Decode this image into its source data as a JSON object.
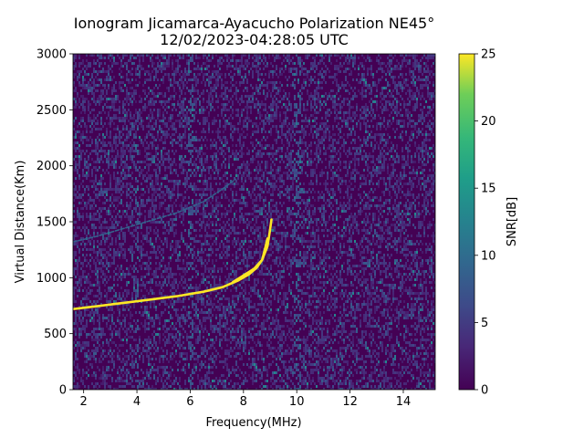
{
  "chart_data": {
    "type": "heatmap",
    "title": "Ionogram Jicamarca-Ayacucho Polarization NE45°",
    "subtitle": "12/02/2023-04:28:05 UTC",
    "xlabel": "Frequency(MHz)",
    "ylabel": "Virtual Distance(Km)",
    "xlim": [
      1.6,
      15.2
    ],
    "ylim": [
      0,
      3000
    ],
    "xticks": [
      2,
      4,
      6,
      8,
      10,
      12,
      14
    ],
    "yticks": [
      0,
      500,
      1000,
      1500,
      2000,
      2500,
      3000
    ],
    "colorbar": {
      "label": "SNR[dB]",
      "range": [
        0,
        25
      ],
      "ticks": [
        0,
        5,
        10,
        15,
        20,
        25
      ],
      "colormap": "viridis"
    },
    "traces": [
      {
        "description_key": "main-echo",
        "snr_db": 25,
        "points": [
          [
            1.6,
            720
          ],
          [
            2.5,
            745
          ],
          [
            3.5,
            775
          ],
          [
            4.5,
            805
          ],
          [
            5.5,
            835
          ],
          [
            6.5,
            875
          ],
          [
            7.2,
            915
          ],
          [
            7.8,
            975
          ],
          [
            8.2,
            1030
          ],
          [
            8.5,
            1090
          ],
          [
            8.7,
            1160
          ],
          [
            8.8,
            1250
          ],
          [
            8.9,
            1350
          ]
        ]
      },
      {
        "description_key": "secondary-echo",
        "snr_db": 25,
        "points": [
          [
            7.6,
            960
          ],
          [
            8.0,
            1020
          ],
          [
            8.4,
            1080
          ],
          [
            8.7,
            1160
          ],
          [
            8.9,
            1280
          ],
          [
            9.0,
            1430
          ],
          [
            9.05,
            1520
          ]
        ]
      },
      {
        "description_key": "multi-hop-echo",
        "snr_db": 9,
        "points": [
          [
            1.6,
            1320
          ],
          [
            2.5,
            1370
          ],
          [
            3.5,
            1440
          ],
          [
            4.5,
            1510
          ],
          [
            5.5,
            1580
          ],
          [
            6.5,
            1680
          ],
          [
            7.2,
            1790
          ],
          [
            7.7,
            1880
          ]
        ]
      }
    ]
  }
}
